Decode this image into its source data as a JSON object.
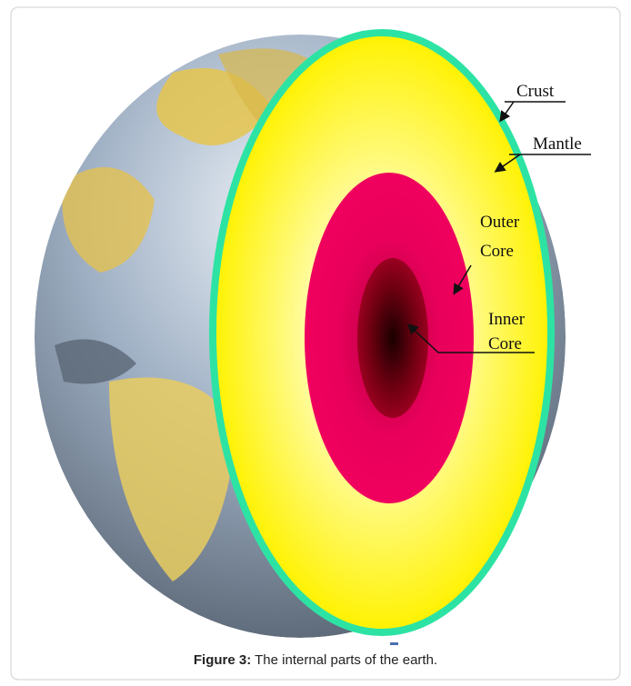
{
  "figure": {
    "labels": {
      "crust": [
        "Crust"
      ],
      "mantle": [
        "Mantle"
      ],
      "outer_core": [
        "Outer",
        "Core"
      ],
      "inner_core": [
        "Inner",
        "Core"
      ]
    },
    "caption": {
      "label": "Figure 3:",
      "text": "The internal parts of the earth."
    }
  }
}
